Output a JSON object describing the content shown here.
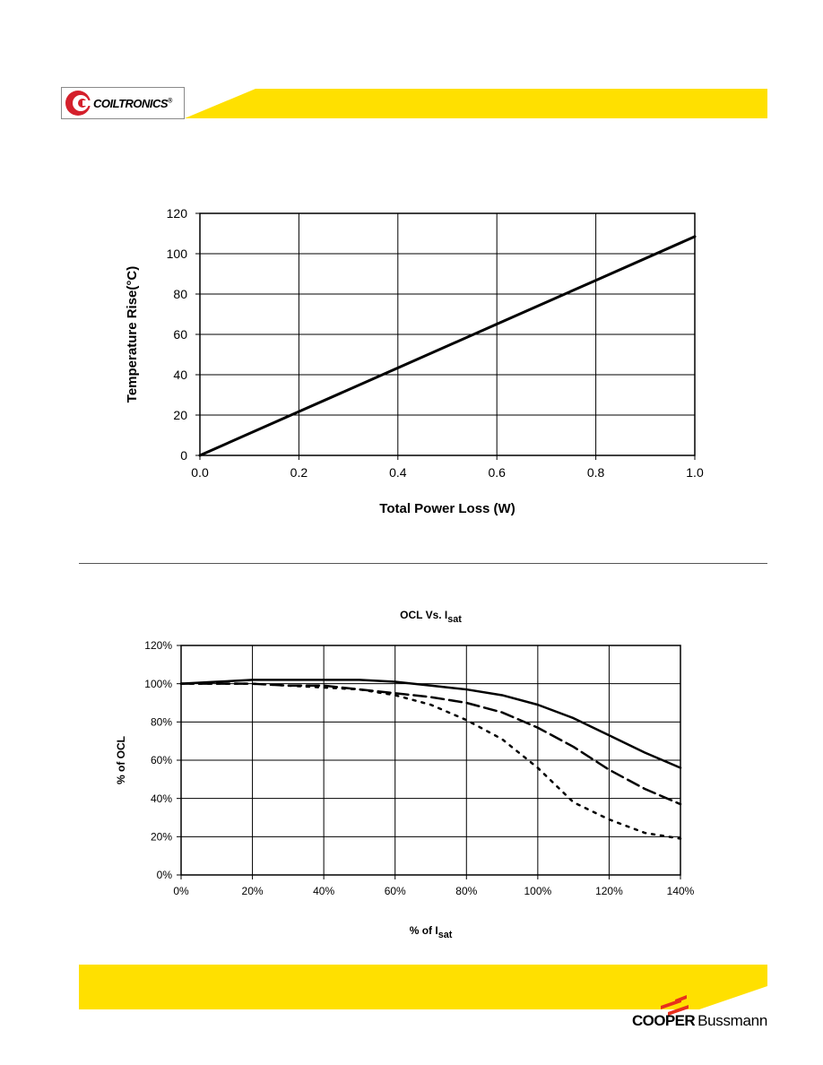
{
  "header": {
    "logo_text": "COILTRONICS",
    "logo_reg": "®",
    "band_color": "#ffe000",
    "logo_red": "#d4202c"
  },
  "footer": {
    "brand_bold": "COOPER",
    "brand_light": "Bussmann",
    "band_color": "#ffe000",
    "accent_red": "#e8301c"
  },
  "chart_data": [
    {
      "type": "line",
      "title": "",
      "xlabel": "Total Power Loss (W)",
      "ylabel": "Temperature Rise(°C)",
      "xlim": [
        0.0,
        1.0
      ],
      "ylim": [
        0,
        120
      ],
      "x_ticks": [
        "0.0",
        "0.2",
        "0.4",
        "0.6",
        "0.8",
        "1.0"
      ],
      "y_ticks": [
        "0",
        "20",
        "40",
        "60",
        "80",
        "100",
        "120"
      ],
      "grid": true,
      "series": [
        {
          "x": [
            0.0,
            0.2,
            0.4,
            0.6,
            0.8,
            1.0
          ],
          "y": [
            0,
            21.7,
            43.4,
            65.1,
            86.8,
            108.5
          ],
          "style": "solid"
        }
      ]
    },
    {
      "type": "line",
      "title": "OCL Vs. I",
      "title_sub": "sat",
      "xlabel": "% of I",
      "xlabel_sub": "sat",
      "ylabel": "% of OCL",
      "xlim": [
        0,
        140
      ],
      "ylim": [
        0,
        120
      ],
      "x_ticks": [
        "0%",
        "20%",
        "40%",
        "60%",
        "80%",
        "100%",
        "120%",
        "140%"
      ],
      "y_ticks": [
        "0%",
        "20%",
        "40%",
        "60%",
        "80%",
        "100%",
        "120%"
      ],
      "grid": true,
      "series": [
        {
          "style": "solid",
          "x": [
            0,
            10,
            20,
            30,
            40,
            50,
            60,
            70,
            80,
            90,
            100,
            110,
            120,
            130,
            140
          ],
          "y": [
            100,
            101,
            102,
            102,
            102,
            102,
            101,
            99,
            97,
            94,
            89,
            82,
            73,
            64,
            56
          ]
        },
        {
          "style": "dashed",
          "x": [
            0,
            10,
            20,
            30,
            40,
            50,
            60,
            70,
            80,
            90,
            100,
            110,
            120,
            130,
            140
          ],
          "y": [
            100,
            100,
            100,
            99,
            99,
            97,
            95,
            93,
            90,
            85,
            77,
            67,
            55,
            45,
            37
          ]
        },
        {
          "style": "dotted",
          "x": [
            0,
            10,
            20,
            30,
            40,
            50,
            60,
            70,
            80,
            90,
            100,
            110,
            120,
            130,
            140
          ],
          "y": [
            100,
            100,
            100,
            99,
            98,
            97,
            94,
            89,
            81,
            71,
            56,
            38,
            29,
            22,
            19
          ]
        }
      ]
    }
  ]
}
